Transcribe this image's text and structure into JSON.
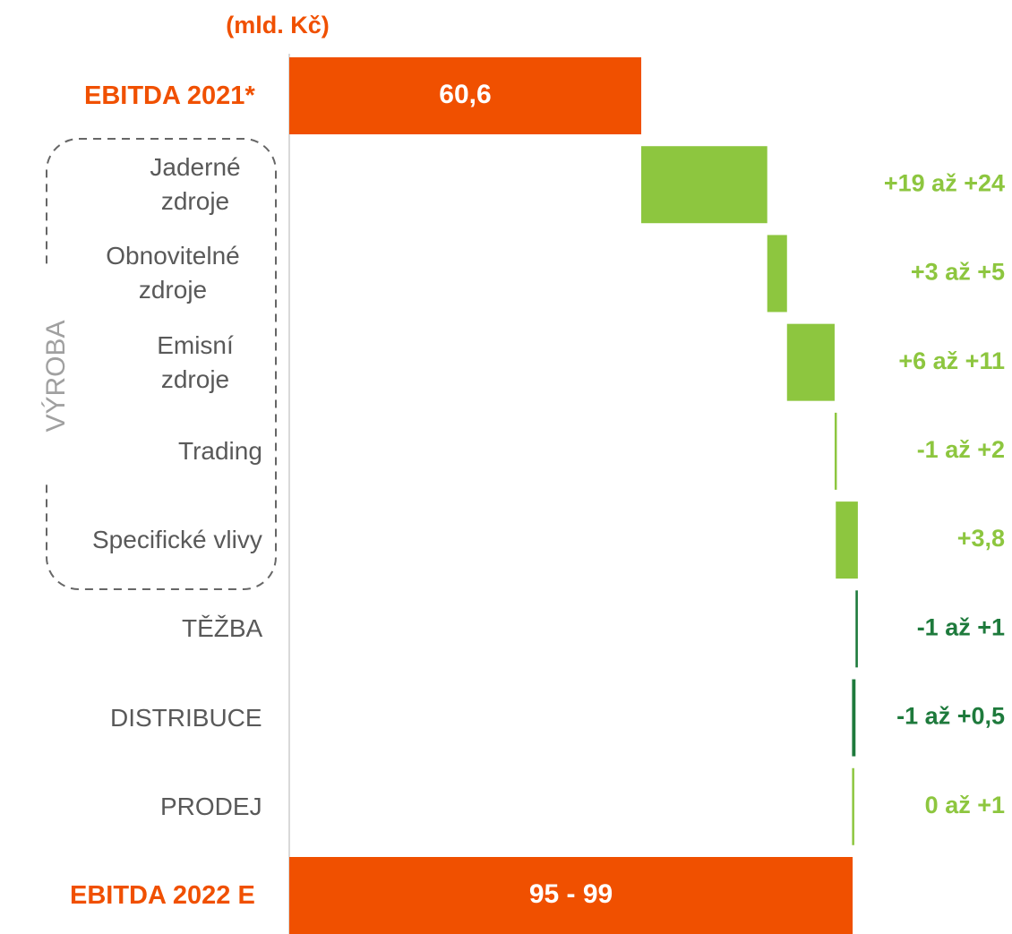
{
  "chart_data": {
    "type": "waterfall",
    "unit": "(mld. Kč)",
    "group_label": "VÝROBA",
    "categories": [
      "EBITDA 2021*",
      "Jaderné zdroje",
      "Obnovitelné zdroje",
      "Emisní zdroje",
      "Trading",
      "Specifické vlivy",
      "TĚŽBA",
      "DISTRIBUCE",
      "PRODEJ",
      "EBITDA 2022 E"
    ],
    "values": [
      60.6,
      21.7,
      3.4,
      8.2,
      0.2,
      3.8,
      -0.4,
      -0.6,
      0.2,
      97
    ],
    "value_labels": [
      "60,6",
      "+19 až +24",
      "+3 až +5",
      "+6 až +11",
      "-1 až +2",
      "+3,8",
      "-1 až +1",
      "-1 až +0,5",
      "0 až +1",
      "95 - 99"
    ],
    "colors": [
      "#f05000",
      "#8dc63f",
      "#8dc63f",
      "#8dc63f",
      "#8dc63f",
      "#8dc63f",
      "#1e7a3c",
      "#1e7a3c",
      "#8dc63f",
      "#f05000"
    ],
    "xlim": [
      0,
      125
    ]
  }
}
